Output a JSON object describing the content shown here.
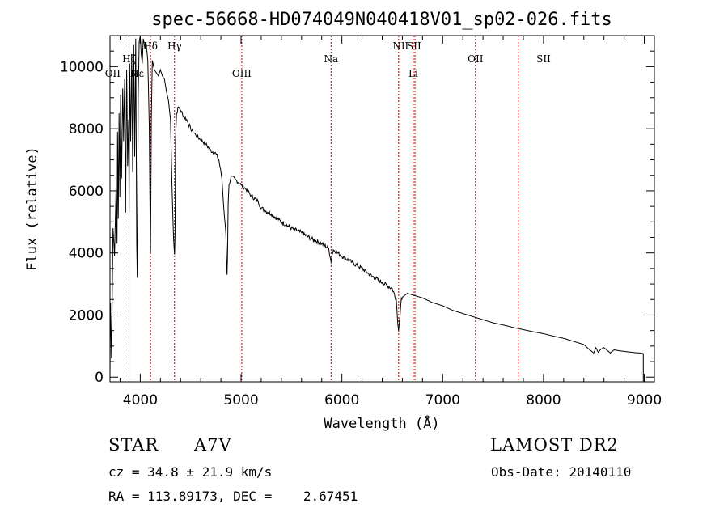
{
  "chart_data": {
    "type": "line",
    "title": "spec-56668-HD074049N040418V01_sp02-026.fits",
    "xlabel": "Wavelength (Å)",
    "ylabel": "Flux (relative)",
    "xlim": [
      3700,
      9100
    ],
    "ylim": [
      -150,
      11000
    ],
    "x_ticks": [
      4000,
      5000,
      6000,
      7000,
      8000,
      9000
    ],
    "x_tick_labels": [
      "4000",
      "5000",
      "6000",
      "7000",
      "8000",
      "9000"
    ],
    "y_ticks": [
      0,
      2000,
      4000,
      6000,
      8000,
      10000
    ],
    "y_tick_labels": [
      "0",
      "2000",
      "4000",
      "6000",
      "8000",
      "10000"
    ],
    "series": [
      {
        "name": "spectrum",
        "x": [
          3700,
          3705,
          3715,
          3730,
          3745,
          3760,
          3770,
          3775,
          3782,
          3790,
          3798,
          3805,
          3815,
          3826,
          3835,
          3845,
          3855,
          3865,
          3875,
          3885,
          3889,
          3895,
          3905,
          3915,
          3925,
          3935,
          3945,
          3955,
          3965,
          3970,
          3980,
          3990,
          4000,
          4010,
          4020,
          4030,
          4045,
          4060,
          4075,
          4090,
          4095,
          4100,
          4102,
          4105,
          4110,
          4120,
          4140,
          4160,
          4180,
          4200,
          4220,
          4240,
          4260,
          4280,
          4300,
          4315,
          4330,
          4340,
          4345,
          4350,
          4360,
          4380,
          4400,
          4430,
          4460,
          4500,
          4550,
          4600,
          4650,
          4700,
          4750,
          4780,
          4810,
          4830,
          4850,
          4858,
          4861,
          4866,
          4872,
          4880,
          4900,
          4950,
          5000,
          5050,
          5100,
          5170,
          5200,
          5270,
          5300,
          5400,
          5500,
          5600,
          5700,
          5800,
          5870,
          5885,
          5893,
          5900,
          5915,
          6000,
          6100,
          6200,
          6300,
          6400,
          6500,
          6540,
          6555,
          6563,
          6571,
          6590,
          6650,
          6700,
          6800,
          6900,
          7000,
          7100,
          7200,
          7300,
          7400,
          7500,
          7600,
          7700,
          7800,
          7900,
          8000,
          8100,
          8200,
          8300,
          8400,
          8450,
          8498,
          8520,
          8542,
          8570,
          8600,
          8662,
          8700,
          8750,
          8800,
          8850,
          8900,
          8950,
          8990
        ],
        "y": [
          0,
          2400,
          600,
          4800,
          3900,
          6100,
          4300,
          7900,
          5100,
          8500,
          5800,
          9100,
          6400,
          9300,
          7600,
          9600,
          5300,
          9900,
          6800,
          8300,
          5300,
          10100,
          7600,
          10400,
          6600,
          10700,
          7100,
          10900,
          4300,
          3200,
          9100,
          10800,
          11000,
          10400,
          10100,
          10900,
          10600,
          10700,
          10200,
          8000,
          6100,
          4200,
          4000,
          5600,
          8300,
          10200,
          9900,
          9800,
          9700,
          9900,
          9700,
          9600,
          9200,
          8900,
          8300,
          6200,
          4500,
          3950,
          4600,
          7600,
          8500,
          8700,
          8600,
          8400,
          8300,
          8000,
          7800,
          7650,
          7500,
          7300,
          7200,
          7000,
          6400,
          5400,
          4600,
          3500,
          3300,
          3900,
          5600,
          6200,
          6450,
          6350,
          6200,
          6050,
          5850,
          5650,
          5450,
          5300,
          5250,
          5000,
          4800,
          4650,
          4450,
          4300,
          4150,
          3850,
          3700,
          3900,
          4100,
          3900,
          3700,
          3500,
          3250,
          3050,
          2850,
          2500,
          1700,
          1500,
          1800,
          2550,
          2700,
          2650,
          2550,
          2400,
          2300,
          2150,
          2050,
          1950,
          1850,
          1750,
          1680,
          1600,
          1530,
          1460,
          1400,
          1320,
          1250,
          1150,
          1050,
          900,
          780,
          950,
          800,
          900,
          950,
          780,
          880,
          850,
          830,
          810,
          790,
          780,
          760
        ]
      }
    ],
    "emission_lines": [
      {
        "label": "Hδ",
        "x": 4102,
        "row": 0
      },
      {
        "label": "Hε",
        "x": 3970,
        "row": 1
      },
      {
        "label": "OII",
        "x": 3727,
        "row": 1
      },
      {
        "label": "K",
        "x": 3934,
        "row": 1
      },
      {
        "label": "Hζ",
        "x": 3889,
        "row": 2
      },
      {
        "label": "Hγ",
        "x": 4340,
        "row": 0
      },
      {
        "label": "OIII",
        "x": 5007,
        "row": 1
      },
      {
        "label": "Na",
        "x": 5893,
        "row": 2
      },
      {
        "label": "NII",
        "x": 6583,
        "row": 0
      },
      {
        "label": "SII",
        "x": 6716,
        "row": 0
      },
      {
        "label": "Li",
        "x": 6708,
        "row": 1
      },
      {
        "label": "OII",
        "x": 7325,
        "row": 2
      },
      {
        "label": "SII",
        "x": 8001,
        "row": 2
      }
    ],
    "marker_lines_x": [
      3889,
      4102,
      4340,
      5007,
      5893,
      6563,
      6708,
      6725,
      7325,
      7750
    ]
  },
  "info": {
    "object_class": "STAR",
    "subclass": "A7V",
    "survey": "LAMOST DR2",
    "redshift": "cz = 34.8 ± 21.9 km/s",
    "obs_date": "Obs-Date: 20140110",
    "coords": "RA = 113.89173, DEC =    2.67451"
  },
  "colors": {
    "spectrum": "#000000",
    "marker_lines": "#b00000",
    "axes": "#000000"
  }
}
